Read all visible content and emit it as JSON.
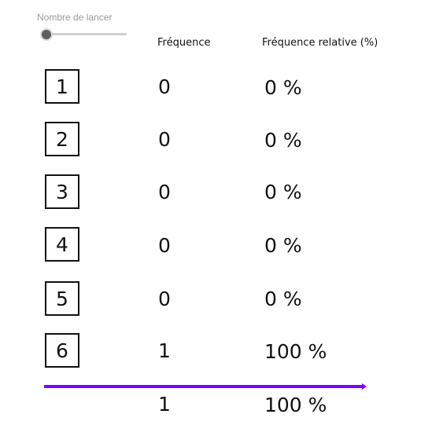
{
  "slider": {
    "label": "Nombre de lancer"
  },
  "headers": {
    "frequency": "Fréquence",
    "relative_frequency": "Fréquence relative (%)"
  },
  "rows": [
    {
      "face": "1",
      "frequency": "0",
      "relative": "0 %"
    },
    {
      "face": "2",
      "frequency": "0",
      "relative": "0 %"
    },
    {
      "face": "3",
      "frequency": "0",
      "relative": "0 %"
    },
    {
      "face": "4",
      "frequency": "0",
      "relative": "0 %"
    },
    {
      "face": "5",
      "frequency": "0",
      "relative": "0 %"
    },
    {
      "face": "6",
      "frequency": "1",
      "relative": "100 %"
    }
  ],
  "total": {
    "frequency": "1",
    "relative": "100 %"
  },
  "colors": {
    "total_line": "#7f00ff",
    "slider_thumb": "#5e5e5e"
  }
}
